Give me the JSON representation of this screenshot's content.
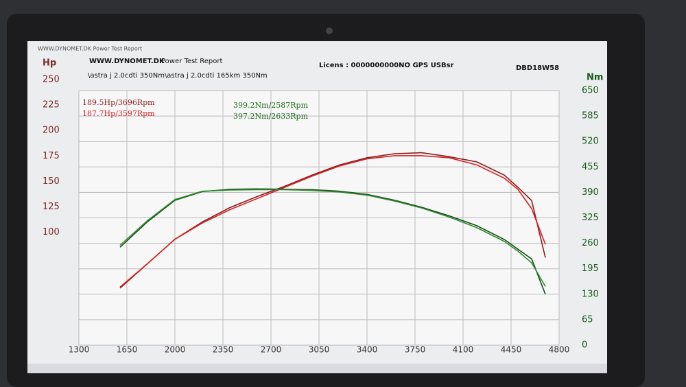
{
  "window": {
    "caption": "WWW.DYNOMET.DK Power Test Report",
    "site": "WWW.DYNOMET.DK",
    "report": "Power Test Report",
    "licence": "Licens :  0000000000NO GPS USBsr",
    "code": "DBD18W58",
    "run": "\\astra j 2.0cdti 350Nm\\astra j 2.0cdti 165km 350Nm"
  },
  "chart_data": {
    "type": "line",
    "ylabel": "Hp",
    "y2label": "Nm",
    "x": [
      1600,
      1800,
      2000,
      2200,
      2400,
      2600,
      2800,
      3000,
      3200,
      3400,
      3600,
      3800,
      4000,
      4200,
      4400,
      4500,
      4600,
      4700
    ],
    "xlim": [
      1300,
      4800
    ],
    "xticks": [
      1300,
      1650,
      2000,
      2350,
      2700,
      3050,
      3400,
      3750,
      4100,
      4450,
      4800
    ],
    "ylim": [
      0,
      250
    ],
    "yticks": [
      100,
      125,
      150,
      175,
      200,
      225,
      250
    ],
    "y2lim": [
      0,
      650
    ],
    "y2ticks": [
      0,
      65,
      130,
      195,
      260,
      325,
      390,
      455,
      520,
      585,
      650
    ],
    "grid": true,
    "series": [
      {
        "color": "#8b1a1a",
        "values": [
          56,
          80,
          104,
          121,
          135,
          146,
          156,
          167,
          177,
          184,
          188,
          189,
          185,
          180,
          167,
          155,
          142,
          86
        ]
      },
      {
        "color": "#d42020",
        "values": [
          57,
          80,
          104,
          120,
          133,
          144,
          155,
          166,
          176,
          183,
          186,
          186,
          184,
          177,
          164,
          153,
          134,
          99
        ]
      },
      {
        "color": "#1a4d1a",
        "axis": "y2",
        "values": [
          250,
          315,
          370,
          392,
          398,
          399,
          398,
          397,
          393,
          385,
          370,
          352,
          330,
          305,
          270,
          245,
          220,
          130
        ]
      },
      {
        "color": "#2e8b2e",
        "axis": "y2",
        "values": [
          255,
          318,
          372,
          393,
          396,
          397,
          397,
          395,
          391,
          383,
          368,
          350,
          327,
          300,
          265,
          240,
          210,
          150
        ]
      }
    ],
    "annotations": [
      {
        "text": "189.5Hp/3696Rpm",
        "color": "#8b1a1a"
      },
      {
        "text": "187.7Hp/3597Rpm",
        "color": "#d42020"
      },
      {
        "text": "399.2Nm/2587Rpm",
        "color": "#1a6b1a"
      },
      {
        "text": "397.2Nm/2633Rpm",
        "color": "#1a6b1a"
      }
    ]
  }
}
